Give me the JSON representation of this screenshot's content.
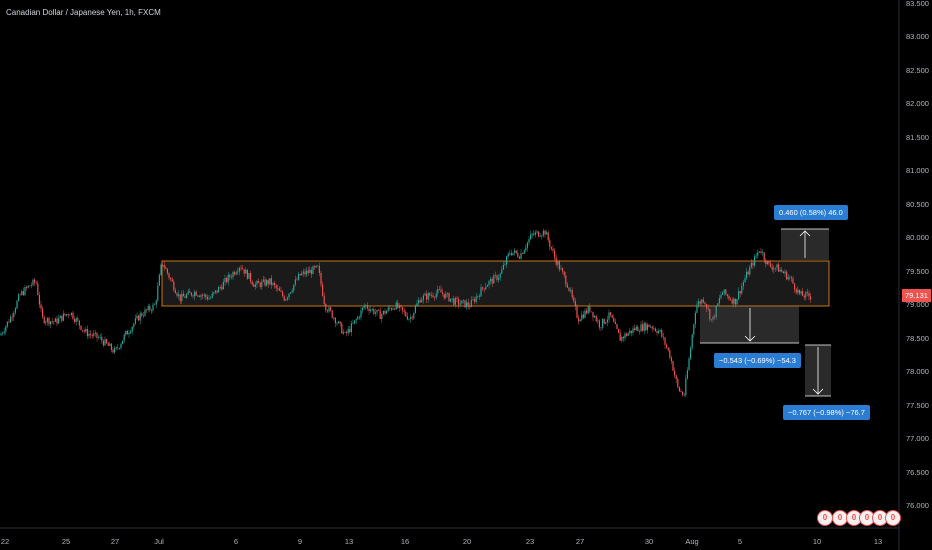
{
  "header": {
    "symbol_title": "Canadian Dollar / Japanese Yen, 1h, FXCM"
  },
  "price_axis": {
    "labels": [
      "83.500",
      "83.000",
      "82.500",
      "82.000",
      "81.500",
      "81.000",
      "80.500",
      "80.000",
      "79.500",
      "79.000",
      "78.500",
      "78.000",
      "77.500",
      "77.000",
      "76.500",
      "76.000"
    ],
    "last_price": "79.131"
  },
  "time_axis": {
    "labels": [
      "22",
      "25",
      "27",
      "Jul",
      "6",
      "9",
      "13",
      "16",
      "20",
      "23",
      "27",
      "30",
      "Aug",
      "5",
      "10",
      "13"
    ]
  },
  "measurements": {
    "up": "0.460 (0.58%) 46.0",
    "down1": "−0.543 (−0.69%) −54.3",
    "down2": "−0.767 (−0.98%) −76.7"
  },
  "badges": [
    "0",
    "0",
    "0",
    "0",
    "0",
    "0"
  ],
  "colors": {
    "up": "#26a69a",
    "down": "#ef5350",
    "zone_border": "#f7931a",
    "tag_bg": "#2b7cd3"
  },
  "chart_data": {
    "type": "candlestick",
    "title": "Canadian Dollar / Japanese Yen, 1h, FXCM",
    "ylim": [
      75.8,
      83.5
    ],
    "x_ticks": [
      "22",
      "25",
      "27",
      "Jul",
      "6",
      "9",
      "13",
      "16",
      "20",
      "23",
      "27",
      "30",
      "Aug",
      "5",
      "10",
      "13"
    ],
    "price_path": [
      [
        0,
        78.55
      ],
      [
        10,
        78.8
      ],
      [
        20,
        79.15
      ],
      [
        30,
        79.3
      ],
      [
        36,
        79.35
      ],
      [
        42,
        78.8
      ],
      [
        55,
        78.75
      ],
      [
        70,
        78.9
      ],
      [
        85,
        78.6
      ],
      [
        100,
        78.5
      ],
      [
        115,
        78.3
      ],
      [
        125,
        78.55
      ],
      [
        140,
        78.85
      ],
      [
        155,
        79.0
      ],
      [
        162,
        79.65
      ],
      [
        170,
        79.4
      ],
      [
        180,
        79.1
      ],
      [
        195,
        79.2
      ],
      [
        210,
        79.1
      ],
      [
        225,
        79.35
      ],
      [
        240,
        79.6
      ],
      [
        255,
        79.3
      ],
      [
        270,
        79.35
      ],
      [
        285,
        79.1
      ],
      [
        300,
        79.45
      ],
      [
        318,
        79.55
      ],
      [
        325,
        79.0
      ],
      [
        335,
        78.8
      ],
      [
        345,
        78.55
      ],
      [
        355,
        78.75
      ],
      [
        365,
        79.0
      ],
      [
        380,
        78.85
      ],
      [
        395,
        79.0
      ],
      [
        410,
        78.8
      ],
      [
        420,
        79.1
      ],
      [
        440,
        79.2
      ],
      [
        455,
        79.05
      ],
      [
        470,
        79.0
      ],
      [
        485,
        79.3
      ],
      [
        500,
        79.45
      ],
      [
        510,
        79.8
      ],
      [
        520,
        79.75
      ],
      [
        532,
        80.05
      ],
      [
        545,
        80.1
      ],
      [
        555,
        79.7
      ],
      [
        568,
        79.3
      ],
      [
        578,
        78.8
      ],
      [
        590,
        78.95
      ],
      [
        600,
        78.7
      ],
      [
        610,
        78.85
      ],
      [
        620,
        78.5
      ],
      [
        635,
        78.65
      ],
      [
        650,
        78.7
      ],
      [
        660,
        78.6
      ],
      [
        670,
        78.25
      ],
      [
        678,
        77.75
      ],
      [
        684,
        77.65
      ],
      [
        690,
        78.3
      ],
      [
        696,
        79.0
      ],
      [
        704,
        79.1
      ],
      [
        712,
        78.75
      ],
      [
        722,
        79.2
      ],
      [
        735,
        79.05
      ],
      [
        745,
        79.4
      ],
      [
        760,
        79.85
      ],
      [
        768,
        79.6
      ],
      [
        778,
        79.55
      ],
      [
        790,
        79.4
      ],
      [
        800,
        79.15
      ],
      [
        812,
        79.13
      ]
    ],
    "zone": {
      "from_price": 79.0,
      "to_price": 79.65,
      "label": "range"
    }
  }
}
